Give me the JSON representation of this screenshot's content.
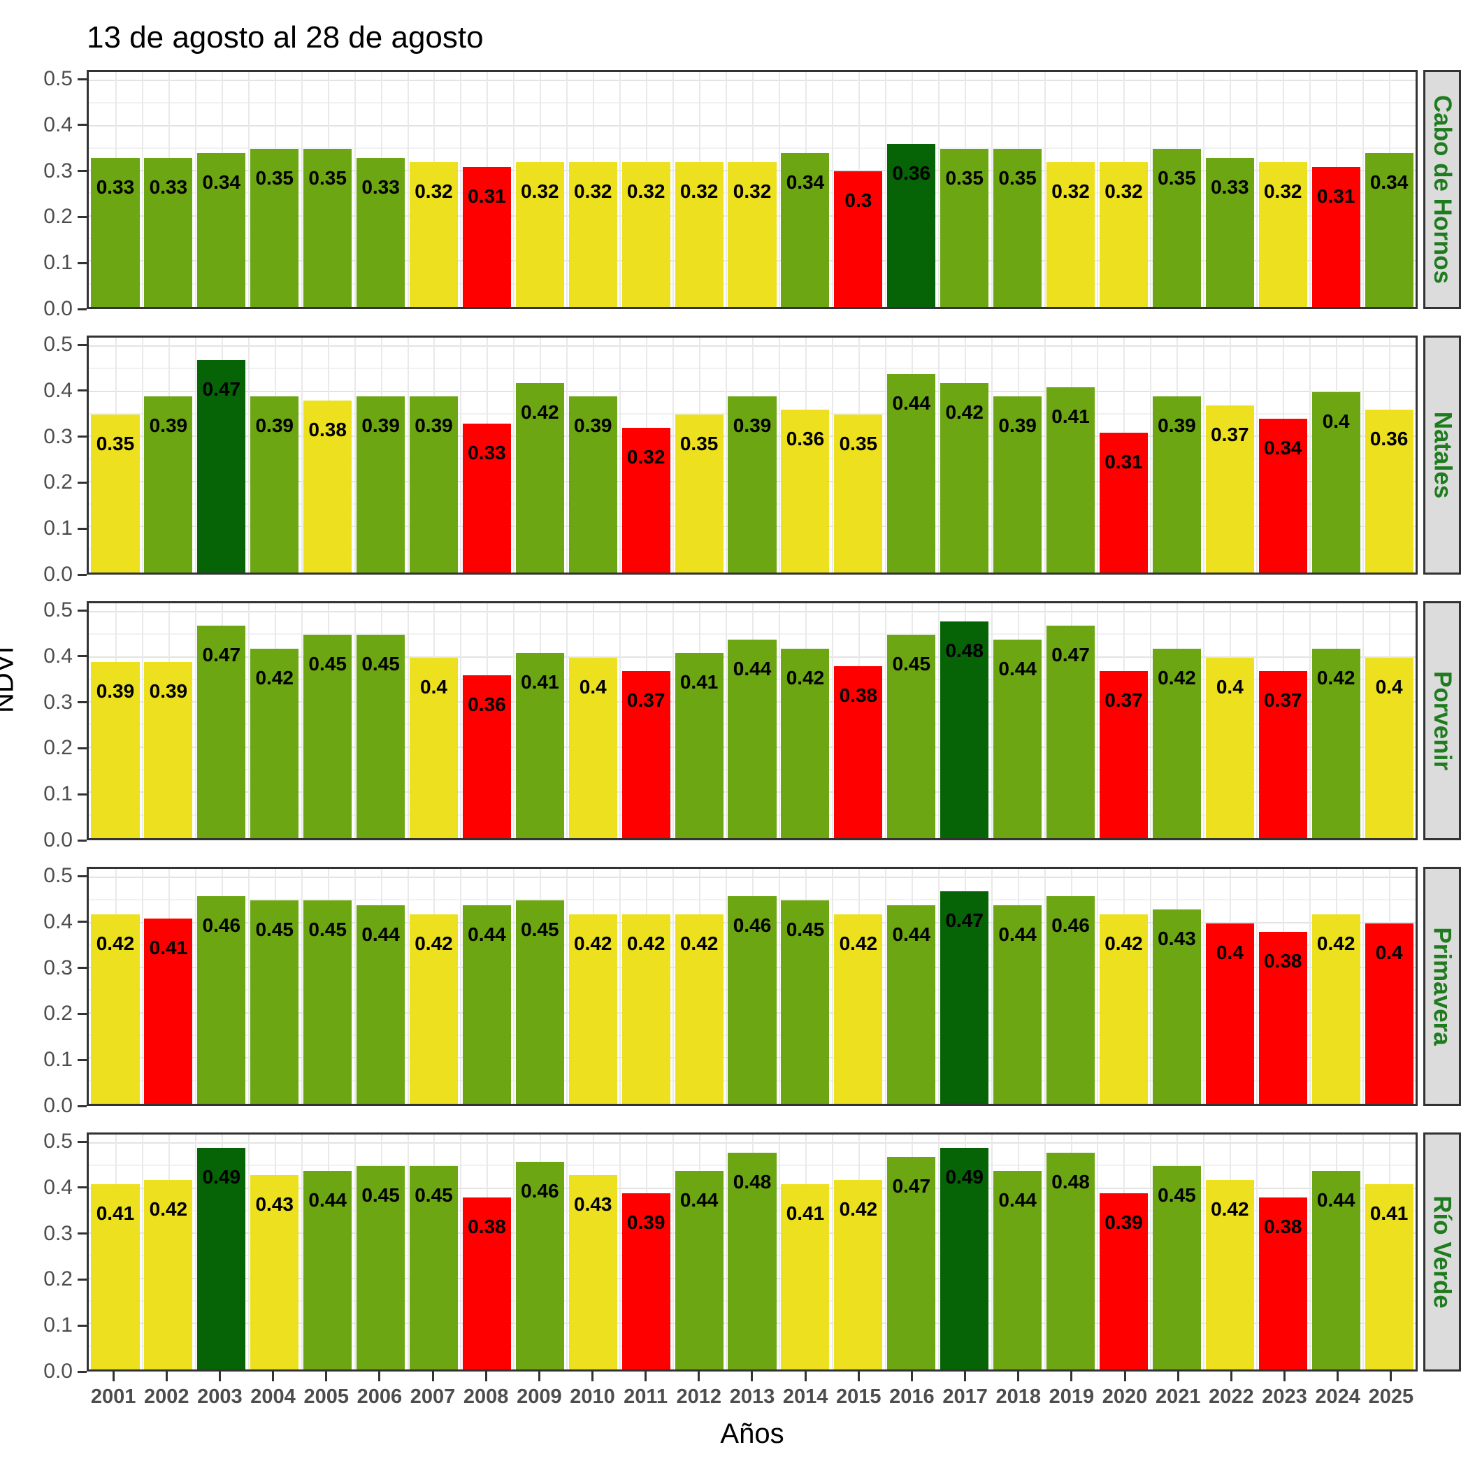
{
  "title": "13 de agosto al 28 de agosto",
  "chart_data": {
    "type": "bar",
    "title": "13 de agosto al 28 de agosto",
    "xlabel": "Años",
    "ylabel": "NDVI",
    "ylim": [
      0,
      0.5
    ],
    "y_ticks": [
      0.0,
      0.1,
      0.2,
      0.3,
      0.4,
      0.5
    ],
    "grid": true,
    "legend_position": "none",
    "facet_layout": "rows, strip labels on right",
    "categories": [
      "2001",
      "2002",
      "2003",
      "2004",
      "2005",
      "2006",
      "2007",
      "2008",
      "2009",
      "2010",
      "2011",
      "2012",
      "2013",
      "2014",
      "2015",
      "2016",
      "2017",
      "2018",
      "2019",
      "2020",
      "2021",
      "2022",
      "2023",
      "2024",
      "2025"
    ],
    "colors": {
      "green": "#6CA612",
      "yellow": "#EDE01E",
      "red": "#FF0000",
      "darkgreen": "#066306"
    },
    "facets": [
      {
        "name": "Cabo de Hornos",
        "values": [
          0.33,
          0.33,
          0.34,
          0.35,
          0.35,
          0.33,
          0.32,
          0.31,
          0.32,
          0.32,
          0.32,
          0.32,
          0.32,
          0.34,
          0.3,
          0.36,
          0.35,
          0.35,
          0.32,
          0.32,
          0.35,
          0.33,
          0.32,
          0.31,
          0.34
        ],
        "bar_colors": [
          "green",
          "green",
          "green",
          "green",
          "green",
          "green",
          "yellow",
          "red",
          "yellow",
          "yellow",
          "yellow",
          "yellow",
          "yellow",
          "green",
          "red",
          "darkgreen",
          "green",
          "green",
          "yellow",
          "yellow",
          "green",
          "green",
          "yellow",
          "red",
          "green"
        ]
      },
      {
        "name": "Natales",
        "values": [
          0.35,
          0.39,
          0.47,
          0.39,
          0.38,
          0.39,
          0.39,
          0.33,
          0.42,
          0.39,
          0.32,
          0.35,
          0.39,
          0.36,
          0.35,
          0.44,
          0.42,
          0.39,
          0.41,
          0.31,
          0.39,
          0.37,
          0.34,
          0.4,
          0.36
        ],
        "bar_colors": [
          "yellow",
          "green",
          "darkgreen",
          "green",
          "yellow",
          "green",
          "green",
          "red",
          "green",
          "green",
          "red",
          "yellow",
          "green",
          "yellow",
          "yellow",
          "green",
          "green",
          "green",
          "green",
          "red",
          "green",
          "yellow",
          "red",
          "green",
          "yellow"
        ]
      },
      {
        "name": "Porvenir",
        "values": [
          0.39,
          0.39,
          0.47,
          0.42,
          0.45,
          0.45,
          0.4,
          0.36,
          0.41,
          0.4,
          0.37,
          0.41,
          0.44,
          0.42,
          0.38,
          0.45,
          0.48,
          0.44,
          0.47,
          0.37,
          0.42,
          0.4,
          0.37,
          0.42,
          0.4
        ],
        "bar_colors": [
          "yellow",
          "yellow",
          "green",
          "green",
          "green",
          "green",
          "yellow",
          "red",
          "green",
          "yellow",
          "red",
          "green",
          "green",
          "green",
          "red",
          "green",
          "darkgreen",
          "green",
          "green",
          "red",
          "green",
          "yellow",
          "red",
          "green",
          "yellow"
        ]
      },
      {
        "name": "Primavera",
        "values": [
          0.42,
          0.41,
          0.46,
          0.45,
          0.45,
          0.44,
          0.42,
          0.44,
          0.45,
          0.42,
          0.42,
          0.42,
          0.46,
          0.45,
          0.42,
          0.44,
          0.47,
          0.44,
          0.46,
          0.42,
          0.43,
          0.4,
          0.38,
          0.42,
          0.4
        ],
        "bar_colors": [
          "yellow",
          "red",
          "green",
          "green",
          "green",
          "green",
          "yellow",
          "green",
          "green",
          "yellow",
          "yellow",
          "yellow",
          "green",
          "green",
          "yellow",
          "green",
          "darkgreen",
          "green",
          "green",
          "yellow",
          "green",
          "red",
          "red",
          "yellow",
          "red"
        ]
      },
      {
        "name": "Río Verde",
        "values": [
          0.41,
          0.42,
          0.49,
          0.43,
          0.44,
          0.45,
          0.45,
          0.38,
          0.46,
          0.43,
          0.39,
          0.44,
          0.48,
          0.41,
          0.42,
          0.47,
          0.49,
          0.44,
          0.48,
          0.39,
          0.45,
          0.42,
          0.38,
          0.44,
          0.41
        ],
        "bar_colors": [
          "yellow",
          "yellow",
          "darkgreen",
          "yellow",
          "green",
          "green",
          "green",
          "red",
          "green",
          "yellow",
          "red",
          "green",
          "green",
          "yellow",
          "yellow",
          "green",
          "darkgreen",
          "green",
          "green",
          "red",
          "green",
          "yellow",
          "red",
          "green",
          "yellow"
        ]
      }
    ]
  }
}
